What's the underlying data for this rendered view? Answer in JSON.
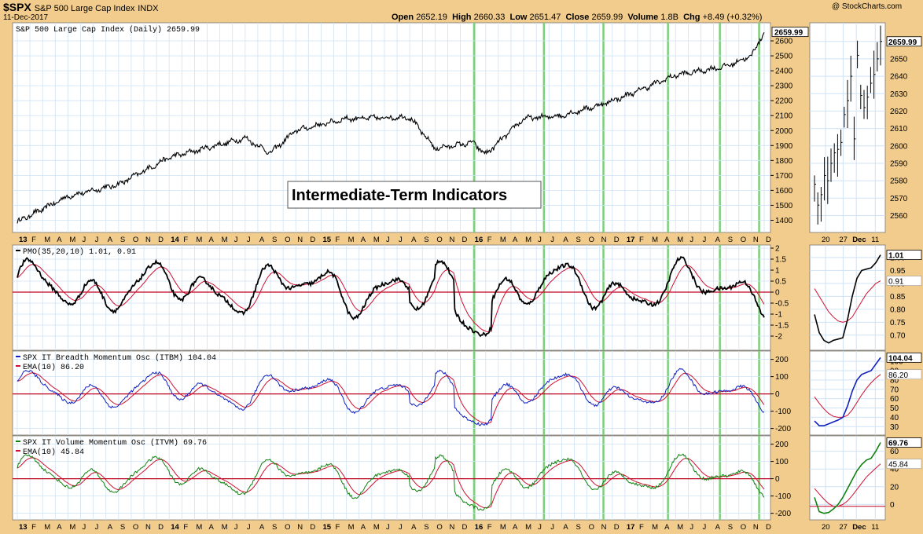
{
  "header": {
    "symbol": "$SPX",
    "name": "S&P 500 Large Cap Index",
    "exchange": "INDX",
    "date": "11-Dec-2017",
    "source": "@ StockCharts.com",
    "open_label": "Open",
    "open": "2652.19",
    "high_label": "High",
    "high": "2660.33",
    "low_label": "Low",
    "low": "2651.47",
    "close_label": "Close",
    "close": "2659.99",
    "volume_label": "Volume",
    "volume": "1.8B",
    "chg_label": "Chg",
    "chg": "+8.49 (+0.32%)"
  },
  "annotation": "Intermediate-Term Indicators",
  "colors": {
    "background": "#f2cc8c",
    "panel": "#ffffff",
    "grid": "#cfe3f5",
    "vline": "#7ccf7c",
    "price": "#000000",
    "signal": "#d01030",
    "itbm": "#1020c0",
    "itvm": "#108010",
    "zero": "#c00020"
  },
  "x_axis": {
    "labels": [
      "13",
      "F",
      "M",
      "A",
      "M",
      "J",
      "J",
      "A",
      "S",
      "O",
      "N",
      "D",
      "14",
      "F",
      "M",
      "A",
      "M",
      "J",
      "J",
      "A",
      "S",
      "O",
      "N",
      "D",
      "15",
      "F",
      "M",
      "A",
      "M",
      "J",
      "J",
      "A",
      "S",
      "O",
      "N",
      "D",
      "16",
      "F",
      "M",
      "A",
      "M",
      "J",
      "J",
      "A",
      "S",
      "O",
      "N",
      "D",
      "17",
      "F",
      "M",
      "A",
      "M",
      "J",
      "J",
      "A",
      "S",
      "O",
      "N",
      "D"
    ],
    "zoom_labels": [
      "20",
      "27",
      "Dec",
      "11"
    ]
  },
  "signal_dates": [
    "2016-01",
    "2016-06",
    "2016-11",
    "2017-04",
    "2017-08",
    "2017-11"
  ],
  "chart_data": [
    {
      "type": "line",
      "title": "S&P 500 Large Cap Index (Daily) 2659.99",
      "series": [
        {
          "name": "S&P 500 Large Cap Index (Daily)",
          "last": 2659.99
        }
      ],
      "ylim": [
        1350,
        2700
      ],
      "yticks": [
        1400,
        1500,
        1600,
        1700,
        1800,
        1900,
        2000,
        2100,
        2200,
        2300,
        2400,
        2500,
        2600
      ],
      "last_label": "2659.99",
      "anchors": [
        [
          0,
          1390
        ],
        [
          4,
          1560
        ],
        [
          8,
          1640
        ],
        [
          12,
          1820
        ],
        [
          18,
          1950
        ],
        [
          20,
          1850
        ],
        [
          22,
          2000
        ],
        [
          26,
          2080
        ],
        [
          31,
          2090
        ],
        [
          33,
          1880
        ],
        [
          36,
          1920
        ],
        [
          37,
          1840
        ],
        [
          40,
          2080
        ],
        [
          43,
          2100
        ],
        [
          46,
          2170
        ],
        [
          48,
          2230
        ],
        [
          52,
          2370
        ],
        [
          56,
          2430
        ],
        [
          58,
          2500
        ],
        [
          59,
          2660
        ]
      ]
    },
    {
      "type": "line",
      "title": "PMO(35,20,10) 1.01, 0.91",
      "series": [
        {
          "name": "PMO",
          "last": 1.01
        },
        {
          "name": "Signal",
          "last": 0.91
        }
      ],
      "ylim": [
        -2.5,
        2.0
      ],
      "yticks": [
        -2.0,
        -1.5,
        -1.0,
        -0.5,
        0.0,
        0.5,
        1.0,
        1.5,
        2.0
      ],
      "last_labels": [
        "1.01",
        "0.91"
      ]
    },
    {
      "type": "line",
      "title": "SPX IT Breadth Momentum Osc (ITBM) 104.04",
      "series": [
        {
          "name": "ITBM",
          "last": 104.04
        },
        {
          "name": "EMA(10)",
          "last": 86.2
        }
      ],
      "legend": [
        "SPX IT Breadth Momentum Osc (ITBM) 104.04",
        "EMA(10) 86.20"
      ],
      "ylim": [
        -220,
        230
      ],
      "yticks": [
        -200,
        -100,
        0,
        100,
        200
      ],
      "last_labels": [
        "104.04",
        "86.20"
      ]
    },
    {
      "type": "line",
      "title": "SPX IT Volume Momentum Osc (ITVM) 69.76",
      "series": [
        {
          "name": "ITVM",
          "last": 69.76
        },
        {
          "name": "EMA(10)",
          "last": 45.84
        }
      ],
      "legend": [
        "SPX IT Volume Momentum Osc (ITVM) 69.76",
        "EMA(10) 45.84"
      ],
      "ylim": [
        -220,
        230
      ],
      "yticks": [
        -200,
        -100,
        0,
        100,
        200
      ],
      "last_labels": [
        "69.76",
        "45.84"
      ]
    }
  ],
  "zoom": {
    "price_ticks": [
      2560,
      2570,
      2580,
      2590,
      2600,
      2610,
      2620,
      2630,
      2640,
      2650,
      2660
    ],
    "price_last": "2659.99",
    "pmo_ticks": [
      0.7,
      0.75,
      0.8,
      0.85,
      0.9,
      0.95,
      1.0
    ],
    "pmo_labels": [
      "1.01",
      "0.91"
    ],
    "itbm_ticks": [
      30,
      40,
      50,
      60,
      70,
      80,
      90,
      100
    ],
    "itbm_labels": [
      "104.04",
      "86.20"
    ],
    "itvm_ticks": [
      0,
      20,
      40,
      60
    ],
    "itvm_labels": [
      "69.76",
      "45.84"
    ]
  }
}
